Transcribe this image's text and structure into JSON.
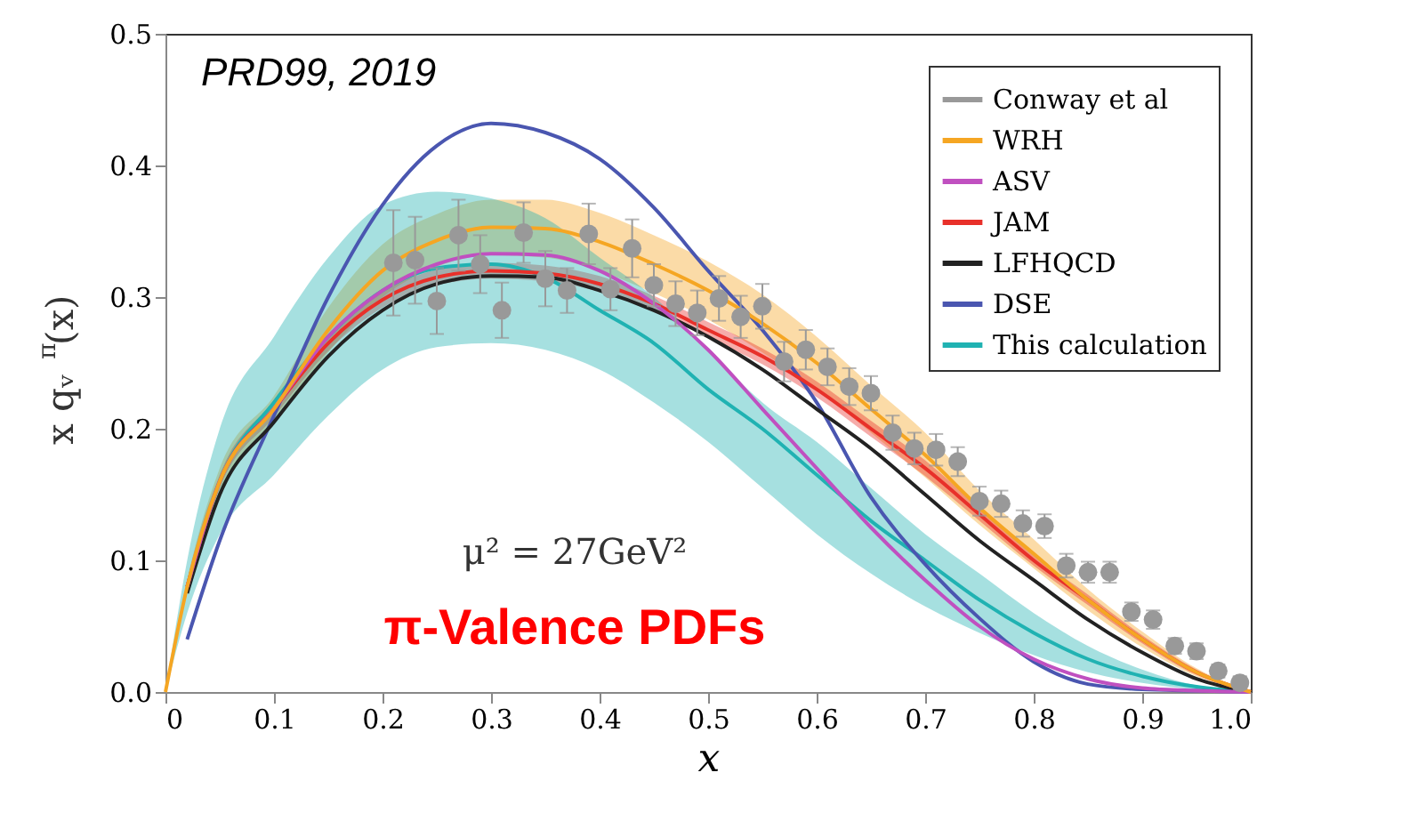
{
  "chart_data": {
    "type": "line",
    "xlabel": "x",
    "ylabel": "x qᵥ$^{π}$(x)",
    "annotations": [
      "PRD99, 2019",
      "μ² = 27GeV²",
      "π-Valence PDFs"
    ],
    "xlim": [
      0,
      1
    ],
    "ylim": [
      0,
      0.5
    ],
    "xticks": [
      {
        "value": 0,
        "label": "0"
      },
      0.1,
      0.2,
      0.3,
      0.4,
      0.5,
      0.6,
      0.7,
      0.8,
      0.9,
      {
        "value": 1,
        "label": "1.0"
      }
    ],
    "yticks": [
      {
        "value": 0,
        "label": "0.0"
      },
      0.1,
      0.2,
      0.3,
      0.4,
      0.5
    ],
    "grid": false,
    "legend": "top right",
    "series": [
      {
        "name": "Conway et al",
        "type": "scatter",
        "color": "#999999",
        "marker": "circle",
        "x": [
          0.21,
          0.23,
          0.25,
          0.27,
          0.29,
          0.31,
          0.33,
          0.35,
          0.37,
          0.39,
          0.41,
          0.43,
          0.45,
          0.47,
          0.49,
          0.51,
          0.53,
          0.55,
          0.57,
          0.59,
          0.61,
          0.63,
          0.65,
          0.67,
          0.69,
          0.71,
          0.73,
          0.75,
          0.77,
          0.79,
          0.81,
          0.83,
          0.85,
          0.87,
          0.89,
          0.91,
          0.93,
          0.95,
          0.97,
          0.99
        ],
        "values": [
          0.326,
          0.328,
          0.297,
          0.347,
          0.325,
          0.29,
          0.349,
          0.314,
          0.305,
          0.348,
          0.306,
          0.337,
          0.309,
          0.295,
          0.288,
          0.299,
          0.285,
          0.293,
          0.251,
          0.26,
          0.247,
          0.232,
          0.227,
          0.197,
          0.185,
          0.184,
          0.175,
          0.145,
          0.143,
          0.128,
          0.126,
          0.096,
          0.091,
          0.091,
          0.061,
          0.055,
          0.035,
          0.031,
          0.016,
          0.007
        ],
        "errors": [
          0.04,
          0.033,
          0.025,
          0.027,
          0.022,
          0.021,
          0.023,
          0.021,
          0.017,
          0.023,
          0.016,
          0.022,
          0.016,
          0.017,
          0.017,
          0.017,
          0.016,
          0.017,
          0.015,
          0.015,
          0.014,
          0.014,
          0.013,
          0.013,
          0.012,
          0.012,
          0.011,
          0.011,
          0.01,
          0.01,
          0.009,
          0.009,
          0.008,
          0.008,
          0.007,
          0.007,
          0.006,
          0.006,
          0.005,
          0.005
        ]
      },
      {
        "name": "WRH",
        "color": "#f5a623",
        "x": [
          0,
          0.02,
          0.05,
          0.1,
          0.15,
          0.2,
          0.25,
          0.3,
          0.35,
          0.4,
          0.45,
          0.5,
          0.55,
          0.6,
          0.65,
          0.7,
          0.75,
          0.8,
          0.85,
          0.9,
          0.95,
          1
        ],
        "values": [
          0,
          0.08,
          0.16,
          0.215,
          0.275,
          0.32,
          0.343,
          0.353,
          0.352,
          0.342,
          0.325,
          0.305,
          0.28,
          0.25,
          0.215,
          0.18,
          0.14,
          0.105,
          0.07,
          0.04,
          0.015,
          0
        ],
        "lower": [
          0,
          0.075,
          0.15,
          0.205,
          0.258,
          0.3,
          0.323,
          0.332,
          0.33,
          0.32,
          0.303,
          0.283,
          0.258,
          0.23,
          0.197,
          0.163,
          0.127,
          0.094,
          0.062,
          0.034,
          0.012,
          0
        ],
        "upper": [
          0,
          0.085,
          0.17,
          0.225,
          0.292,
          0.34,
          0.363,
          0.374,
          0.374,
          0.364,
          0.347,
          0.327,
          0.302,
          0.27,
          0.233,
          0.197,
          0.153,
          0.116,
          0.078,
          0.046,
          0.018,
          0
        ]
      },
      {
        "name": "ASV",
        "color": "#c050c0",
        "x": [
          0.02,
          0.05,
          0.1,
          0.15,
          0.2,
          0.25,
          0.3,
          0.35,
          0.4,
          0.45,
          0.5,
          0.55,
          0.6,
          0.65,
          0.7,
          0.75,
          0.8,
          0.85,
          0.9,
          0.95,
          1
        ],
        "values": [
          0.08,
          0.16,
          0.215,
          0.27,
          0.305,
          0.325,
          0.333,
          0.332,
          0.32,
          0.295,
          0.26,
          0.215,
          0.17,
          0.125,
          0.085,
          0.05,
          0.025,
          0.01,
          0.003,
          0.001,
          0
        ]
      },
      {
        "name": "JAM",
        "color": "#e8302a",
        "x": [
          0,
          0.02,
          0.05,
          0.1,
          0.15,
          0.2,
          0.25,
          0.3,
          0.35,
          0.4,
          0.45,
          0.5,
          0.55,
          0.6,
          0.65,
          0.7,
          0.75,
          0.8,
          0.85,
          0.9,
          0.95,
          1
        ],
        "values": [
          null,
          0.08,
          0.16,
          0.215,
          0.265,
          0.298,
          0.315,
          0.32,
          0.318,
          0.31,
          0.295,
          0.275,
          0.255,
          0.23,
          0.2,
          0.17,
          0.135,
          0.1,
          0.07,
          0.04,
          0.015,
          0
        ],
        "lower": [
          0,
          0.076,
          0.155,
          0.209,
          0.259,
          0.292,
          0.309,
          0.314,
          0.312,
          0.304,
          0.289,
          0.269,
          0.249,
          0.224,
          0.194,
          0.164,
          0.13,
          0.096,
          0.066,
          0.037,
          0.013,
          0
        ],
        "upper": [
          0,
          0.084,
          0.165,
          0.221,
          0.271,
          0.304,
          0.321,
          0.326,
          0.324,
          0.316,
          0.301,
          0.281,
          0.261,
          0.236,
          0.206,
          0.176,
          0.14,
          0.104,
          0.074,
          0.043,
          0.017,
          0
        ]
      },
      {
        "name": "LFHQCD",
        "color": "#222222",
        "x": [
          0.02,
          0.05,
          0.1,
          0.15,
          0.2,
          0.25,
          0.3,
          0.35,
          0.4,
          0.45,
          0.5,
          0.55,
          0.6,
          0.65,
          0.7,
          0.75,
          0.8,
          0.85,
          0.9,
          0.95,
          1
        ],
        "values": [
          0.075,
          0.15,
          0.205,
          0.255,
          0.29,
          0.31,
          0.316,
          0.315,
          0.305,
          0.29,
          0.27,
          0.245,
          0.215,
          0.185,
          0.15,
          0.115,
          0.085,
          0.055,
          0.03,
          0.01,
          0
        ]
      },
      {
        "name": "DSE",
        "color": "#4a56b0",
        "x": [
          0.02,
          0.05,
          0.1,
          0.15,
          0.2,
          0.25,
          0.3,
          0.35,
          0.4,
          0.45,
          0.5,
          0.55,
          0.6,
          0.65,
          0.7,
          0.75,
          0.8,
          0.85,
          0.9,
          0.95,
          1
        ],
        "values": [
          0.04,
          0.115,
          0.21,
          0.3,
          0.37,
          0.415,
          0.432,
          0.425,
          0.405,
          0.368,
          0.32,
          0.275,
          0.22,
          0.148,
          0.097,
          0.056,
          0.023,
          0.006,
          0.002,
          0.001,
          0
        ]
      },
      {
        "name": "This calculation",
        "color": "#20b2b2",
        "x": [
          0,
          0.02,
          0.05,
          0.1,
          0.15,
          0.2,
          0.25,
          0.3,
          0.35,
          0.4,
          0.45,
          0.5,
          0.55,
          0.6,
          0.65,
          0.7,
          0.75,
          0.8,
          0.85,
          0.9,
          0.95,
          1
        ],
        "values": [
          null,
          0.08,
          0.16,
          0.22,
          0.27,
          0.305,
          0.322,
          0.325,
          0.315,
          0.29,
          0.265,
          0.23,
          0.2,
          0.165,
          0.13,
          0.1,
          0.07,
          0.045,
          0.025,
          0.012,
          0.004,
          0
        ],
        "lower": [
          0,
          0.06,
          0.12,
          0.165,
          0.21,
          0.245,
          0.262,
          0.265,
          0.26,
          0.245,
          0.22,
          0.19,
          0.155,
          0.12,
          0.09,
          0.065,
          0.045,
          0.028,
          0.015,
          0.007,
          0.002,
          0
        ],
        "upper": [
          0,
          0.1,
          0.2,
          0.27,
          0.33,
          0.37,
          0.38,
          0.375,
          0.36,
          0.33,
          0.3,
          0.26,
          0.22,
          0.19,
          0.155,
          0.12,
          0.09,
          0.06,
          0.035,
          0.017,
          0.005,
          0
        ]
      }
    ]
  }
}
